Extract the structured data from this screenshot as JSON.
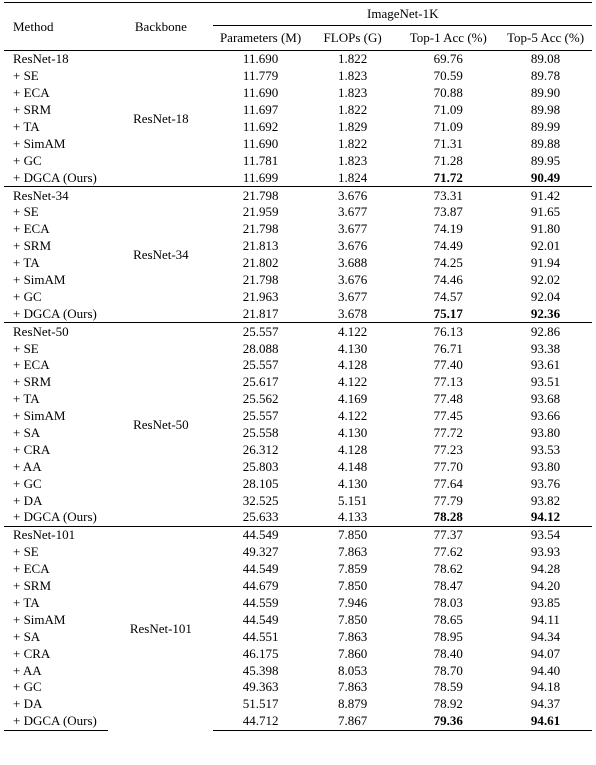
{
  "header": {
    "method": "Method",
    "backbone": "Backbone",
    "group": "ImageNet-1K",
    "parameters": "Parameters (M)",
    "flops": "FLOPs (G)",
    "top1": "Top-1 Acc (%)",
    "top5": "Top-5 Acc (%)"
  },
  "groups": [
    {
      "backbone": "ResNet-18",
      "rows": [
        {
          "method": "ResNet-18",
          "params": "11.690",
          "flops": "1.822",
          "top1": "69.76",
          "top5": "89.08"
        },
        {
          "method": "+ SE",
          "params": "11.779",
          "flops": "1.823",
          "top1": "70.59",
          "top5": "89.78"
        },
        {
          "method": "+ ECA",
          "params": "11.690",
          "flops": "1.823",
          "top1": "70.88",
          "top5": "89.90"
        },
        {
          "method": "+ SRM",
          "params": "11.697",
          "flops": "1.822",
          "top1": "71.09",
          "top5": "89.98"
        },
        {
          "method": "+ TA",
          "params": "11.692",
          "flops": "1.829",
          "top1": "71.09",
          "top5": "89.99"
        },
        {
          "method": "+ SimAM",
          "params": "11.690",
          "flops": "1.822",
          "top1": "71.31",
          "top5": "89.88"
        },
        {
          "method": "+ GC",
          "params": "11.781",
          "flops": "1.823",
          "top1": "71.28",
          "top5": "89.95"
        },
        {
          "method": "+ DGCA (Ours)",
          "params": "11.699",
          "flops": "1.824",
          "top1": "71.72",
          "top5": "90.49"
        }
      ]
    },
    {
      "backbone": "ResNet-34",
      "rows": [
        {
          "method": "ResNet-34",
          "params": "21.798",
          "flops": "3.676",
          "top1": "73.31",
          "top5": "91.42"
        },
        {
          "method": "+ SE",
          "params": "21.959",
          "flops": "3.677",
          "top1": "73.87",
          "top5": "91.65"
        },
        {
          "method": "+ ECA",
          "params": "21.798",
          "flops": "3.677",
          "top1": "74.19",
          "top5": "91.80"
        },
        {
          "method": "+ SRM",
          "params": "21.813",
          "flops": "3.676",
          "top1": "74.49",
          "top5": "92.01"
        },
        {
          "method": "+ TA",
          "params": "21.802",
          "flops": "3.688",
          "top1": "74.25",
          "top5": "91.94"
        },
        {
          "method": "+ SimAM",
          "params": "21.798",
          "flops": "3.676",
          "top1": "74.46",
          "top5": "92.02"
        },
        {
          "method": "+ GC",
          "params": "21.963",
          "flops": "3.677",
          "top1": "74.57",
          "top5": "92.04"
        },
        {
          "method": "+ DGCA (Ours)",
          "params": "21.817",
          "flops": "3.678",
          "top1": "75.17",
          "top5": "92.36"
        }
      ]
    },
    {
      "backbone": "ResNet-50",
      "rows": [
        {
          "method": "ResNet-50",
          "params": "25.557",
          "flops": "4.122",
          "top1": "76.13",
          "top5": "92.86"
        },
        {
          "method": "+ SE",
          "params": "28.088",
          "flops": "4.130",
          "top1": "76.71",
          "top5": "93.38"
        },
        {
          "method": "+ ECA",
          "params": "25.557",
          "flops": "4.128",
          "top1": "77.40",
          "top5": "93.61"
        },
        {
          "method": "+ SRM",
          "params": "25.617",
          "flops": "4.122",
          "top1": "77.13",
          "top5": "93.51"
        },
        {
          "method": "+ TA",
          "params": "25.562",
          "flops": "4.169",
          "top1": "77.48",
          "top5": "93.68"
        },
        {
          "method": "+ SimAM",
          "params": "25.557",
          "flops": "4.122",
          "top1": "77.45",
          "top5": "93.66"
        },
        {
          "method": "+ SA",
          "params": "25.558",
          "flops": "4.130",
          "top1": "77.72",
          "top5": "93.80"
        },
        {
          "method": "+ CRA",
          "params": "26.312",
          "flops": "4.128",
          "top1": "77.23",
          "top5": "93.53"
        },
        {
          "method": "+ AA",
          "params": "25.803",
          "flops": "4.148",
          "top1": "77.70",
          "top5": "93.80"
        },
        {
          "method": "+ GC",
          "params": "28.105",
          "flops": "4.130",
          "top1": "77.64",
          "top5": "93.76"
        },
        {
          "method": "+ DA",
          "params": "32.525",
          "flops": "5.151",
          "top1": "77.79",
          "top5": "93.82"
        },
        {
          "method": "+ DGCA (Ours)",
          "params": "25.633",
          "flops": "4.133",
          "top1": "78.28",
          "top5": "94.12"
        }
      ]
    },
    {
      "backbone": "ResNet-101",
      "rows": [
        {
          "method": "ResNet-101",
          "params": "44.549",
          "flops": "7.850",
          "top1": "77.37",
          "top5": "93.54"
        },
        {
          "method": "+ SE",
          "params": "49.327",
          "flops": "7.863",
          "top1": "77.62",
          "top5": "93.93"
        },
        {
          "method": "+ ECA",
          "params": "44.549",
          "flops": "7.859",
          "top1": "78.62",
          "top5": "94.28"
        },
        {
          "method": "+ SRM",
          "params": "44.679",
          "flops": "7.850",
          "top1": "78.47",
          "top5": "94.20"
        },
        {
          "method": "+ TA",
          "params": "44.559",
          "flops": "7.946",
          "top1": "78.03",
          "top5": "93.85"
        },
        {
          "method": "+ SimAM",
          "params": "44.549",
          "flops": "7.850",
          "top1": "78.65",
          "top5": "94.11"
        },
        {
          "method": "+ SA",
          "params": "44.551",
          "flops": "7.863",
          "top1": "78.95",
          "top5": "94.34"
        },
        {
          "method": "+ CRA",
          "params": "46.175",
          "flops": "7.860",
          "top1": "78.40",
          "top5": "94.07"
        },
        {
          "method": "+ AA",
          "params": "45.398",
          "flops": "8.053",
          "top1": "78.70",
          "top5": "94.40"
        },
        {
          "method": "+ GC",
          "params": "49.363",
          "flops": "7.863",
          "top1": "78.59",
          "top5": "94.18"
        },
        {
          "method": "+ DA",
          "params": "51.517",
          "flops": "8.879",
          "top1": "78.92",
          "top5": "94.37"
        },
        {
          "method": "+ DGCA (Ours)",
          "params": "44.712",
          "flops": "7.867",
          "top1": "79.36",
          "top5": "94.61"
        }
      ]
    }
  ]
}
